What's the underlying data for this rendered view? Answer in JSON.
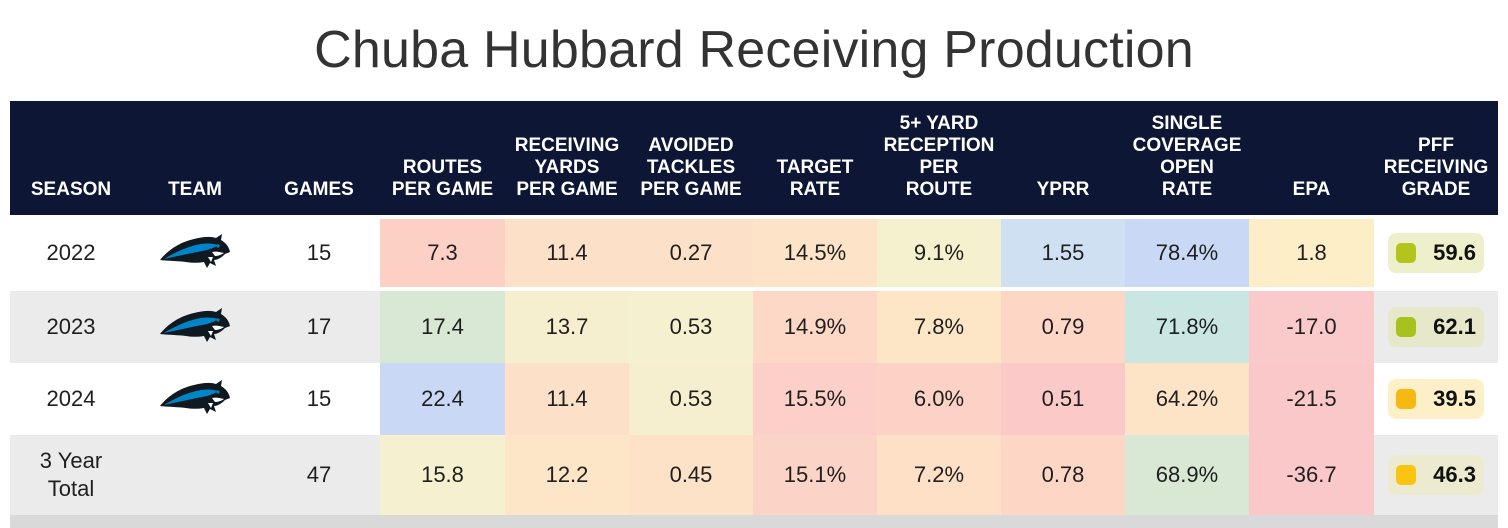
{
  "title": "Chuba Hubbard Receiving Production",
  "headers": [
    [
      "SEASON"
    ],
    [
      "TEAM"
    ],
    [
      "GAMES"
    ],
    [
      "ROUTES",
      "PER GAME"
    ],
    [
      "RECEIVING",
      "YARDS",
      "PER GAME"
    ],
    [
      "AVOIDED",
      "TACKLES",
      "PER GAME"
    ],
    [
      "TARGET",
      "RATE"
    ],
    [
      "5+ YARD",
      "RECEPTION",
      "PER",
      "ROUTE"
    ],
    [
      "YPRR"
    ],
    [
      "SINGLE",
      "COVERAGE",
      "OPEN",
      "RATE"
    ],
    [
      "EPA"
    ],
    [
      "PFF",
      "RECEIVING",
      "GRADE"
    ]
  ],
  "rows": [
    {
      "season": "2022",
      "team_logo": "carolina-panthers-logo",
      "games": "15",
      "metrics": [
        "7.3",
        "11.4",
        "0.27",
        "14.5%",
        "9.1%",
        "1.55",
        "78.4%",
        "1.8"
      ],
      "metric_colors": [
        "#fdd0c6",
        "#fde0c8",
        "#fde0c8",
        "#fde4c8",
        "#f5f1cf",
        "#cfe0f2",
        "#c9d9f5",
        "#fdeec7"
      ],
      "grade": "59.6",
      "grade_dot": "#b3c51d",
      "grade_bg": "#eef0cc"
    },
    {
      "season": "2023",
      "team_logo": "carolina-panthers-logo",
      "games": "17",
      "metrics": [
        "17.4",
        "13.7",
        "0.53",
        "14.9%",
        "7.8%",
        "0.79",
        "71.8%",
        "-17.0"
      ],
      "metric_colors": [
        "#d8e8d4",
        "#f6efcf",
        "#f5f0cf",
        "#fdd8c6",
        "#fde6c6",
        "#fdd6c6",
        "#c9e6e3",
        "#fac9c9"
      ],
      "grade": "62.1",
      "grade_dot": "#a7c21e",
      "grade_bg": "#e6e8c9"
    },
    {
      "season": "2024",
      "team_logo": "carolina-panthers-logo",
      "games": "15",
      "metrics": [
        "22.4",
        "11.4",
        "0.53",
        "15.5%",
        "6.0%",
        "0.51",
        "64.2%",
        "-21.5"
      ],
      "metric_colors": [
        "#c9d9f5",
        "#fde0c8",
        "#f6efcf",
        "#fccfc8",
        "#fdd2c6",
        "#fbcac8",
        "#fde4c7",
        "#fac8c8"
      ],
      "grade": "39.5",
      "grade_dot": "#f6b812",
      "grade_bg": "#fdf0c9"
    },
    {
      "season": "3 Year Total",
      "season_lines": [
        "3 Year",
        "Total"
      ],
      "team_logo": "",
      "games": "47",
      "metrics": [
        "15.8",
        "12.2",
        "0.45",
        "15.1%",
        "7.2%",
        "0.78",
        "68.9%",
        "-36.7"
      ],
      "metric_colors": [
        "#f5f0cf",
        "#fde5c8",
        "#fde2c8",
        "#fcd3c7",
        "#fde0c6",
        "#fdd6c6",
        "#d8e8d4",
        "#fac8c8"
      ],
      "grade": "46.3",
      "grade_dot": "#fbc413",
      "grade_bg": "#ecebcf"
    }
  ]
}
